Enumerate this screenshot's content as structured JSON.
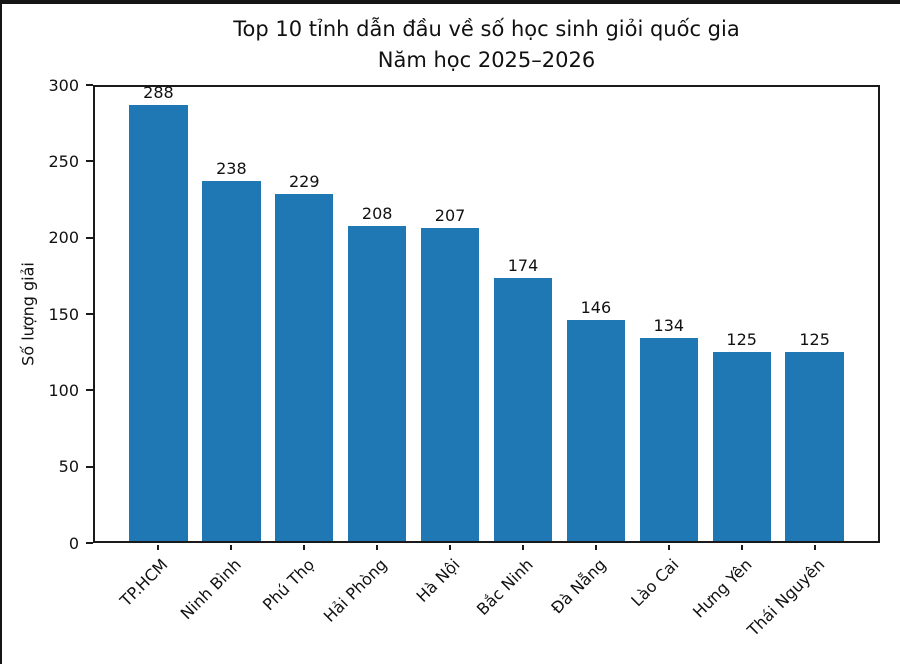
{
  "frame": {
    "background": "#ffffff",
    "edge_border_color": "#151515"
  },
  "chart_data": {
    "type": "bar",
    "title": "Top 10 tỉnh dẫn đầu về số học sinh giỏi quốc gia\nNăm học 2025–2026",
    "title_line1": "Top 10 tỉnh dẫn đầu về số học sinh giỏi quốc gia",
    "title_line2": "Năm học 2025–2026",
    "xlabel": "",
    "ylabel": "Số lượng giải",
    "categories": [
      "TP.HCM",
      "Ninh Bình",
      "Phú Thọ",
      "Hải Phòng",
      "Hà Nội",
      "Bắc Ninh",
      "Đà Nẵng",
      "Lào Cai",
      "Hưng Yên",
      "Thái Nguyên"
    ],
    "values": [
      288,
      238,
      229,
      208,
      207,
      174,
      146,
      134,
      125,
      125
    ],
    "bar_labels": [
      "288",
      "238",
      "229",
      "208",
      "207",
      "174",
      "146",
      "134",
      "125",
      "125"
    ],
    "ylim": [
      0,
      300
    ],
    "ytick_step": 50,
    "ytick_labels": [
      "0",
      "50",
      "100",
      "150",
      "200",
      "250",
      "300"
    ],
    "xtick_label_rotation_deg": 45,
    "grid": "off",
    "legend": "none",
    "bar_color": "#1f77b4",
    "spine_color": "#1a1a1a",
    "text_color": "#111111"
  }
}
